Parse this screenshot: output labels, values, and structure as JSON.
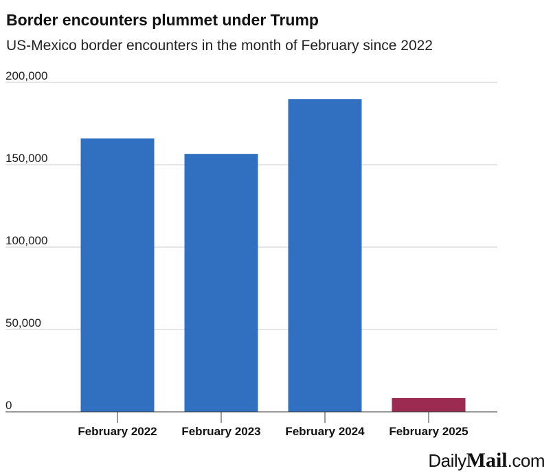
{
  "chart_data": {
    "type": "bar",
    "title": "Border encounters plummet under Trump",
    "subtitle": "US-Mexico border encounters in the month of February since 2022",
    "categories": [
      "February 2022",
      "February 2023",
      "February 2024",
      "February 2025"
    ],
    "values": [
      166000,
      156600,
      189900,
      8350
    ],
    "bar_colors": [
      "#3170c1",
      "#3170c1",
      "#3170c1",
      "#9b2b50"
    ],
    "ylim": [
      0,
      200000
    ],
    "yticks": [
      0,
      50000,
      100000,
      150000,
      200000
    ],
    "ytick_labels": [
      "0",
      "50,000",
      "100,000",
      "150,000",
      "200,000"
    ],
    "grid": true,
    "legend": "none"
  },
  "branding": {
    "logo_part1": "Daily",
    "logo_part2": "Mail",
    "logo_part3": ".com"
  },
  "colors": {
    "primary_bar": "#3170c1",
    "highlight_bar": "#9b2b50",
    "gridline": "#cccccc",
    "axis": "#333333"
  }
}
